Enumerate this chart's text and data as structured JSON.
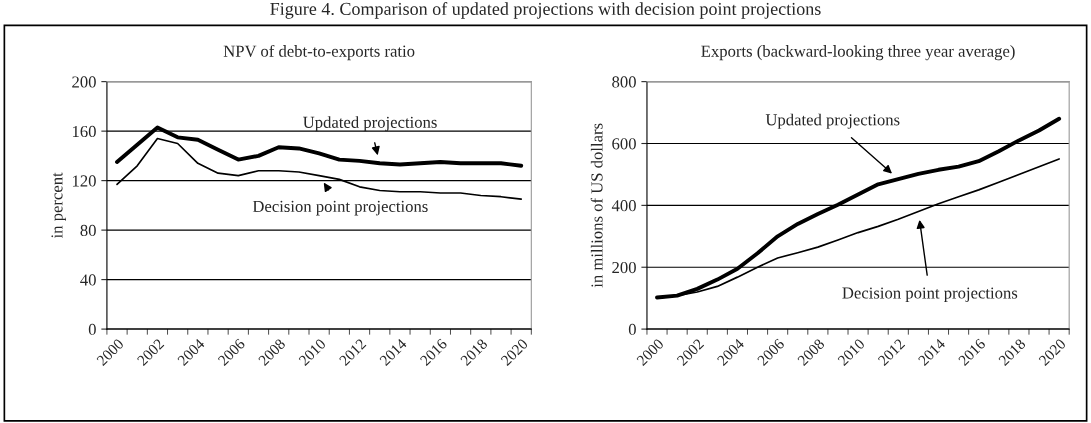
{
  "chart_data": [
    {
      "type": "line",
      "title": "NPV of debt-to-exports ratio",
      "ylabel": "in percent",
      "annotations": [
        "Figure 4. Comparison of updated projections with decision point projections"
      ],
      "categories": [
        "2000",
        null,
        "2002",
        null,
        "2004",
        null,
        "2006",
        null,
        "2008",
        null,
        "2010",
        null,
        "2012",
        null,
        "2014",
        null,
        "2016",
        null,
        "2018",
        null,
        "2020"
      ],
      "series": [
        {
          "name": "Updated projections",
          "color": "#000000",
          "values": [
            135,
            149,
            163,
            155,
            153,
            145,
            137,
            140,
            147,
            146,
            142,
            137,
            136,
            134,
            133,
            134,
            135,
            134,
            134,
            134,
            132
          ]
        },
        {
          "name": "Decision point projections",
          "color": "#000000",
          "values": [
            117,
            132,
            154,
            150,
            134,
            126,
            124,
            128,
            128,
            127,
            124,
            121,
            115,
            112,
            111,
            111,
            110,
            110,
            108,
            107,
            105
          ]
        }
      ],
      "ylim": [
        0,
        200
      ],
      "yticks": [
        0,
        40,
        80,
        120,
        160,
        200
      ],
      "grid": "y"
    },
    {
      "type": "line",
      "title": "Exports (backward-looking three year average)",
      "ylabel": "in millions of US dollars",
      "categories": [
        "2000",
        null,
        "2002",
        null,
        "2004",
        null,
        "2006",
        null,
        "2008",
        null,
        "2010",
        null,
        "2012",
        null,
        "2014",
        null,
        "2016",
        null,
        "2018",
        null,
        "2020"
      ],
      "series": [
        {
          "name": "Updated projections",
          "color": "#000000",
          "values": [
            102,
            108,
            130,
            160,
            195,
            245,
            300,
            340,
            372,
            402,
            435,
            468,
            485,
            502,
            515,
            525,
            543,
            575,
            610,
            642,
            680
          ]
        },
        {
          "name": "Decision point projections",
          "color": "#000000",
          "values": [
            100,
            108,
            120,
            138,
            168,
            200,
            230,
            247,
            265,
            288,
            312,
            332,
            355,
            380,
            405,
            428,
            450,
            475,
            500,
            525,
            550
          ]
        }
      ],
      "ylim": [
        0,
        800
      ],
      "yticks": [
        0,
        200,
        400,
        600,
        800
      ],
      "grid": "y"
    }
  ]
}
